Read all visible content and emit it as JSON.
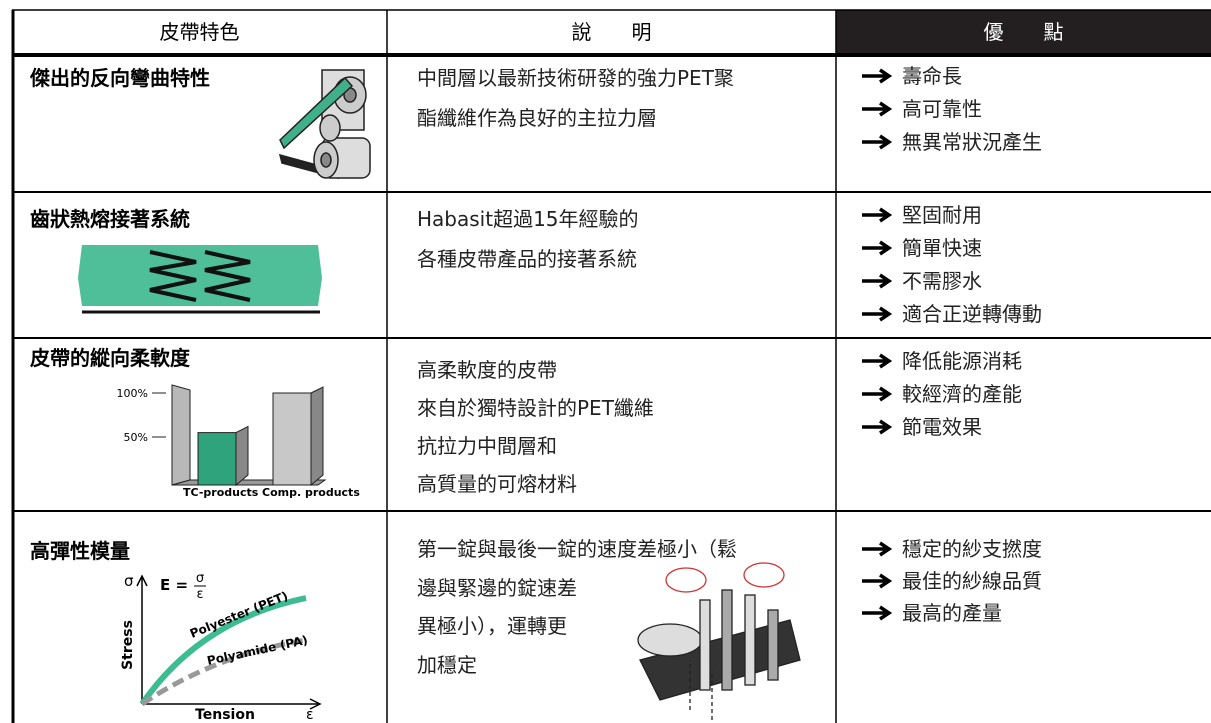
{
  "header": {
    "feature": "皮帶特色",
    "description": "說　　明",
    "advantages": "優　　點"
  },
  "rows": [
    {
      "feature": "傑出的反向彎曲特性",
      "description": [
        "中間層以最新技術研發的強力PET聚",
        "酯纖維作為良好的主拉力層"
      ],
      "advantages": [
        "壽命長",
        "高可靠性",
        "無異常狀況產生"
      ]
    },
    {
      "feature": "齒狀熱熔接著系統",
      "description": [
        "Habasit超過15年經驗的",
        "各種皮帶產品的接著系統"
      ],
      "advantages": [
        "堅固耐用",
        "簡單快速",
        "不需膠水",
        "適合正逆轉傳動"
      ]
    },
    {
      "feature": "皮帶的縱向柔軟度",
      "description": [
        "高柔軟度的皮帶",
        "來自於獨特設計的PET纖維",
        "抗拉力中間層和",
        "高質量的可熔材料"
      ],
      "advantages": [
        "降低能源消耗",
        "較經濟的產能",
        "節電效果"
      ],
      "chart": {
        "type": "bar",
        "categories": [
          "TC-products",
          "Comp. products"
        ],
        "values": [
          55,
          100
        ],
        "colors": [
          "#2fa37c",
          "#c8c8c8"
        ],
        "ylim": [
          0,
          100
        ],
        "yticks": [
          {
            "value": 50,
            "label": "50%"
          },
          {
            "value": 100,
            "label": "100%"
          }
        ]
      }
    },
    {
      "feature": "高彈性模量",
      "description": [
        "第一錠與最後一錠的速度差極小（鬆",
        "邊與緊邊的錠速差",
        "異極小），運轉更",
        "加穩定"
      ],
      "advantages": [
        "穩定的紗支撚度",
        "最佳的紗線品質",
        "最高的產量"
      ],
      "diagram": {
        "y_symbol": "σ",
        "formula_lhs": "E =",
        "formula_num": "σ",
        "formula_den": "ε",
        "y_label": "Stress",
        "x_label": "Tension",
        "x_symbol": "ε",
        "curve_1": "Polyester (PET)",
        "curve_2": "Polyamide (PA)"
      }
    }
  ]
}
